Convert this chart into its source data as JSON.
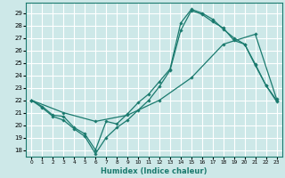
{
  "xlabel": "Humidex (Indice chaleur)",
  "xlim": [
    -0.5,
    23.5
  ],
  "ylim": [
    17.5,
    29.8
  ],
  "yticks": [
    18,
    19,
    20,
    21,
    22,
    23,
    24,
    25,
    26,
    27,
    28,
    29
  ],
  "xticks": [
    0,
    1,
    2,
    3,
    4,
    5,
    6,
    7,
    8,
    9,
    10,
    11,
    12,
    13,
    14,
    15,
    16,
    17,
    18,
    19,
    20,
    21,
    22,
    23
  ],
  "bg_color": "#cde8e8",
  "grid_color": "#ffffff",
  "line_color": "#1a7a6e",
  "line1_x": [
    0,
    1,
    2,
    3,
    4,
    5,
    6,
    7,
    8,
    9,
    10,
    11,
    12,
    13,
    14,
    15,
    16,
    17,
    18,
    19,
    20,
    21,
    22,
    23
  ],
  "line1_y": [
    22.0,
    21.5,
    20.8,
    20.7,
    19.8,
    19.3,
    18.0,
    20.3,
    20.1,
    20.9,
    21.8,
    22.5,
    23.5,
    24.5,
    28.2,
    29.3,
    29.0,
    28.5,
    27.7,
    27.0,
    26.5,
    24.8,
    23.2,
    21.9
  ],
  "line2_x": [
    0,
    1,
    2,
    3,
    4,
    5,
    6,
    7,
    8,
    9,
    10,
    11,
    12,
    13,
    14,
    15,
    16,
    17,
    18,
    19,
    20,
    21,
    22,
    23
  ],
  "line2_y": [
    22.0,
    21.4,
    20.7,
    20.4,
    19.7,
    19.1,
    17.7,
    19.0,
    19.8,
    20.4,
    21.2,
    22.0,
    23.1,
    24.4,
    27.6,
    29.2,
    28.9,
    28.3,
    27.8,
    26.8,
    26.5,
    24.9,
    23.2,
    22.0
  ],
  "line3_x": [
    0,
    3,
    6,
    9,
    12,
    15,
    18,
    21,
    23
  ],
  "line3_y": [
    22.0,
    21.0,
    20.3,
    20.8,
    22.0,
    23.8,
    26.5,
    27.3,
    22.1
  ]
}
